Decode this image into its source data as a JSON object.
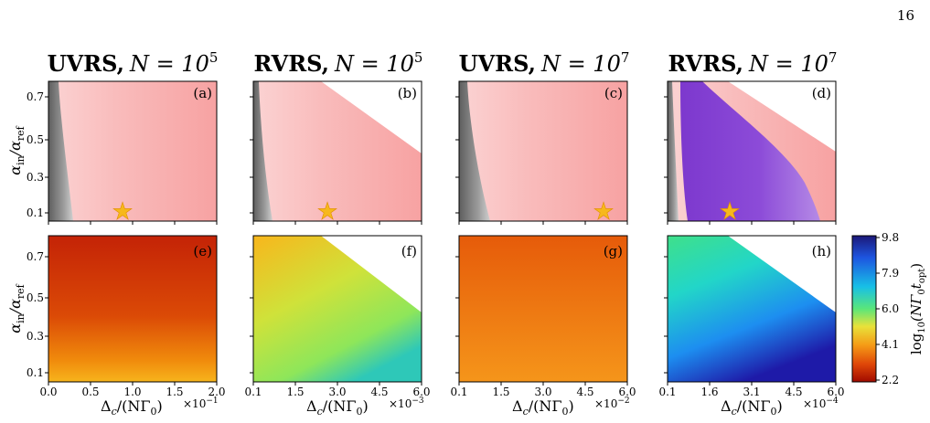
{
  "page_number": "16",
  "colorbar": {
    "label_parts": [
      "log",
      "10",
      "(NΓ",
      "0",
      "t",
      "opt",
      ")"
    ],
    "ticks": [
      "9.8",
      "7.9",
      "6.0",
      "4.1",
      "2.2"
    ]
  },
  "y_axis": {
    "label_parts": [
      "α",
      "in",
      "/α",
      "ref"
    ],
    "ticks": [
      "0.7",
      "0.5",
      "0.3",
      "0.1"
    ]
  },
  "panels": [
    {
      "title_bold": "UVRS,",
      "title_n": "N = 10",
      "title_exp": "5",
      "top_letter": "(a)",
      "bottom_letter": "(e)",
      "xticks": [
        "0.0",
        "0.5",
        "1.0",
        "1.5",
        "2.0"
      ],
      "x_multiplier": "×10",
      "x_mult_exp": "−1",
      "xlabel_parts": [
        "Δ",
        "c",
        "/(NΓ",
        "0",
        ")"
      ],
      "star": "yes"
    },
    {
      "title_bold": "RVRS,",
      "title_n": "N = 10",
      "title_exp": "5",
      "top_letter": "(b)",
      "bottom_letter": "(f)",
      "xticks": [
        "0.1",
        "1.5",
        "3.0",
        "4.5",
        "6.0"
      ],
      "x_multiplier": "×10",
      "x_mult_exp": "−3",
      "xlabel_parts": [
        "Δ",
        "c",
        "/(NΓ",
        "0",
        ")"
      ],
      "star": "yes"
    },
    {
      "title_bold": "UVRS,",
      "title_n": "N = 10",
      "title_exp": "7",
      "top_letter": "(c)",
      "bottom_letter": "(g)",
      "xticks": [
        "0.1",
        "1.5",
        "3.0",
        "4.5",
        "6.0"
      ],
      "x_multiplier": "×10",
      "x_mult_exp": "−2",
      "xlabel_parts": [
        "Δ",
        "c",
        "/(NΓ",
        "0",
        ")"
      ],
      "star": "yes"
    },
    {
      "title_bold": "RVRS,",
      "title_n": "N = 10",
      "title_exp": "7",
      "top_letter": "(d)",
      "bottom_letter": "(h)",
      "xticks": [
        "0.1",
        "1.6",
        "3.1",
        "4.5",
        "6.0"
      ],
      "x_multiplier": "×10",
      "x_mult_exp": "−4",
      "xlabel_parts": [
        "Δ",
        "c",
        "/(NΓ",
        "0",
        ")"
      ],
      "star": "yes"
    }
  ],
  "colors": {
    "pink": "#f8a5a5",
    "pink_light": "#fbcfcf",
    "gray_dark": "#6f6f6f",
    "gray_light": "#c9c9c9",
    "purple": "#8a48d6",
    "star": "#f7b81c"
  }
}
